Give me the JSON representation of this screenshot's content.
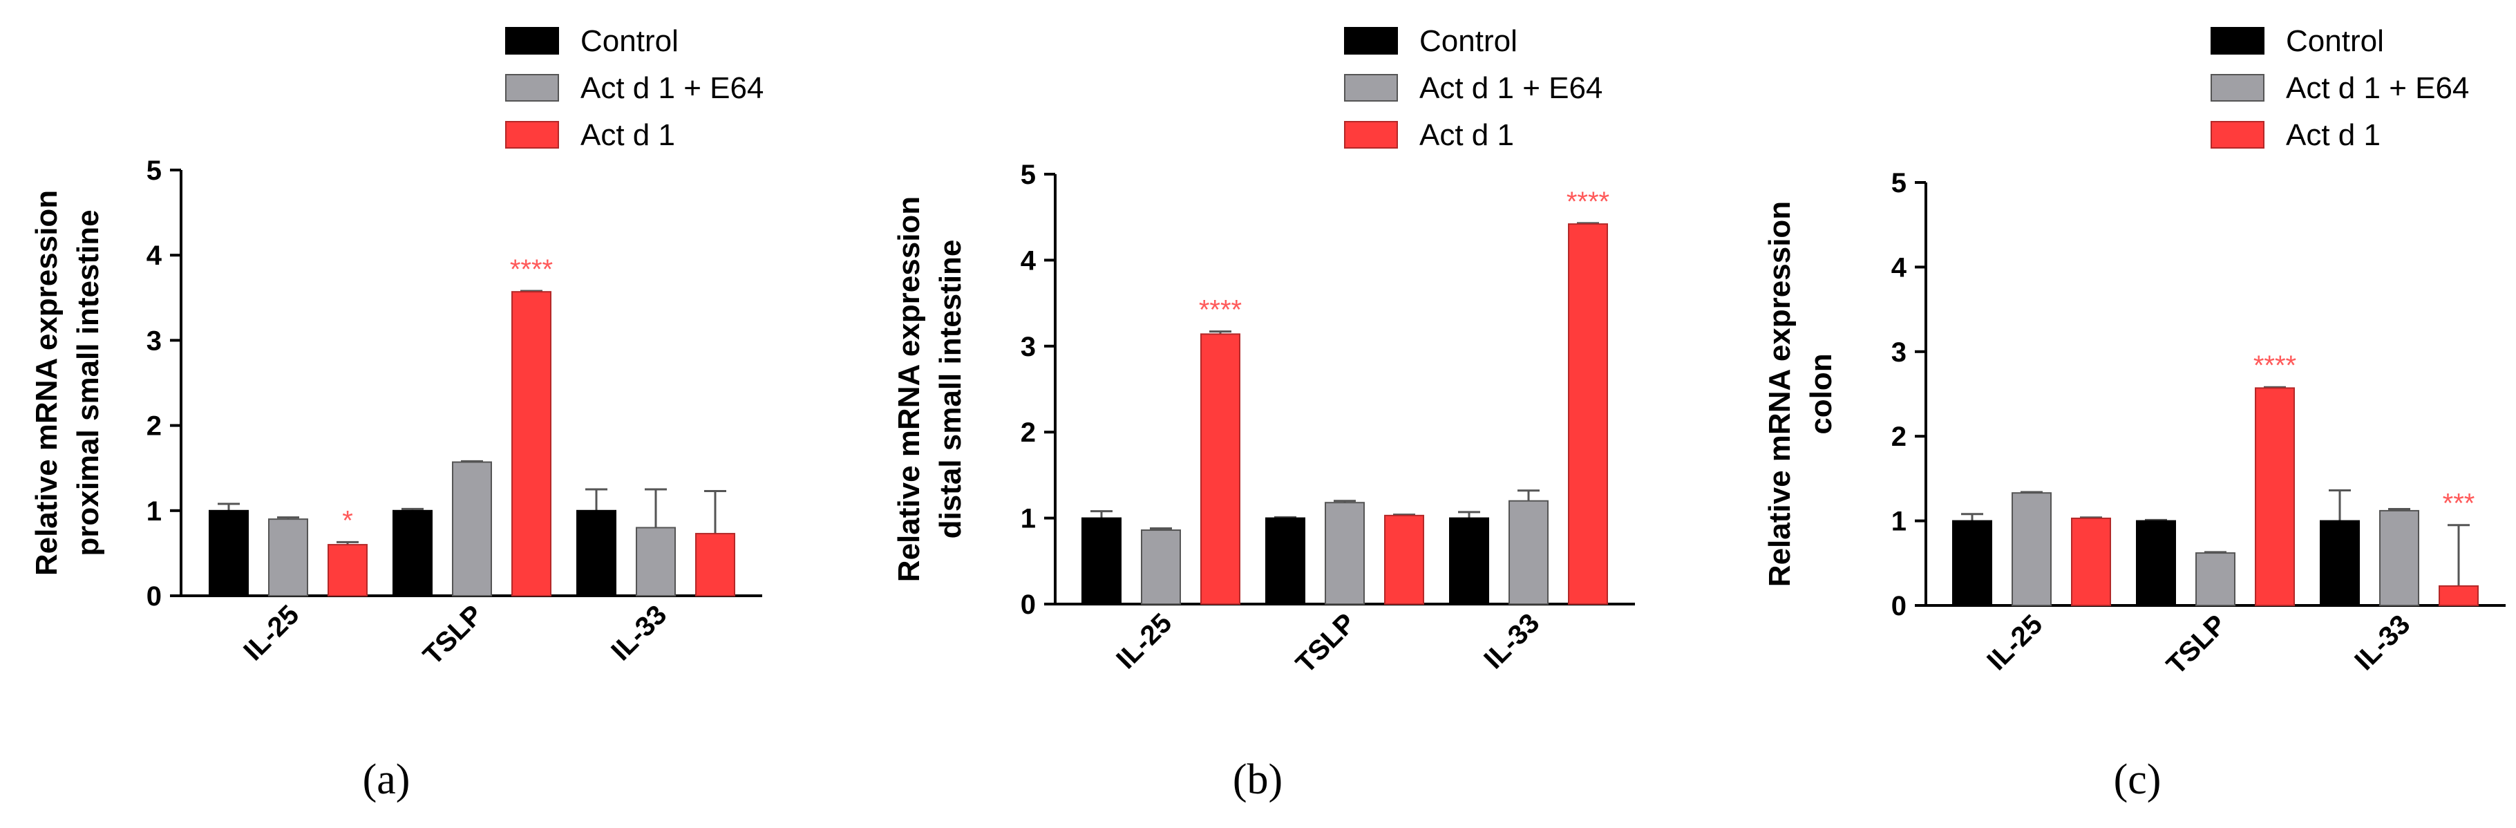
{
  "colors": {
    "control": "#000000",
    "e64": "#a0a0a5",
    "actd1": "#ff3c3c",
    "significance": "#ff5a5a"
  },
  "legend": [
    "Control",
    "Act d 1 + E64",
    "Act d 1"
  ],
  "chart_data": [
    {
      "type": "bar",
      "panel_label": "(a)",
      "ylabel": [
        "Relative mRNA expression",
        "proximal small intestine"
      ],
      "ylim": [
        0,
        5
      ],
      "yticks": [
        "0",
        "1",
        "2",
        "3",
        "4",
        "5"
      ],
      "categories": [
        "IL-25",
        "TSLP",
        "IL-33"
      ],
      "series": [
        {
          "name": "Control",
          "values": [
            1.0,
            1.0,
            1.0
          ],
          "errors": [
            0.08,
            0.02,
            0.25
          ]
        },
        {
          "name": "Act d 1 + E64",
          "values": [
            0.9,
            1.57,
            0.8
          ],
          "errors": [
            0.02,
            0.01,
            0.45
          ]
        },
        {
          "name": "Act d 1",
          "values": [
            0.6,
            3.57,
            0.73
          ],
          "errors": [
            0.03,
            0.01,
            0.5
          ]
        }
      ],
      "significance": [
        "*",
        "****",
        ""
      ]
    },
    {
      "type": "bar",
      "panel_label": "(b)",
      "ylabel": [
        "Relative mRNA expression",
        "distal small intestine"
      ],
      "ylim": [
        0,
        5
      ],
      "yticks": [
        "0",
        "1",
        "2",
        "3",
        "4",
        "5"
      ],
      "categories": [
        "IL-25",
        "TSLP",
        "IL-33"
      ],
      "series": [
        {
          "name": "Control",
          "values": [
            1.0,
            1.0,
            1.0
          ],
          "errors": [
            0.08,
            0.01,
            0.07
          ]
        },
        {
          "name": "Act d 1 + E64",
          "values": [
            0.86,
            1.18,
            1.2
          ],
          "errors": [
            0.02,
            0.02,
            0.12
          ]
        },
        {
          "name": "Act d 1",
          "values": [
            3.14,
            1.03,
            4.42
          ],
          "errors": [
            0.03,
            0.01,
            0.01
          ]
        }
      ],
      "significance": [
        "****",
        "",
        "****"
      ]
    },
    {
      "type": "bar",
      "panel_label": "(c)",
      "ylabel": [
        "Relative mRNA expression",
        "colon"
      ],
      "ylim": [
        0,
        5
      ],
      "yticks": [
        "0",
        "1",
        "2",
        "3",
        "4",
        "5"
      ],
      "categories": [
        "IL-25",
        "TSLP",
        "IL-33"
      ],
      "series": [
        {
          "name": "Control",
          "values": [
            1.0,
            1.0,
            1.0
          ],
          "errors": [
            0.08,
            0.01,
            0.36
          ]
        },
        {
          "name": "Act d 1 + E64",
          "values": [
            1.33,
            0.62,
            1.12
          ],
          "errors": [
            0.01,
            0.01,
            0.02
          ]
        },
        {
          "name": "Act d 1",
          "values": [
            1.03,
            2.57,
            0.23
          ],
          "errors": [
            0.01,
            0.01,
            0.72
          ]
        }
      ],
      "significance": [
        "",
        "****",
        "***"
      ]
    }
  ]
}
